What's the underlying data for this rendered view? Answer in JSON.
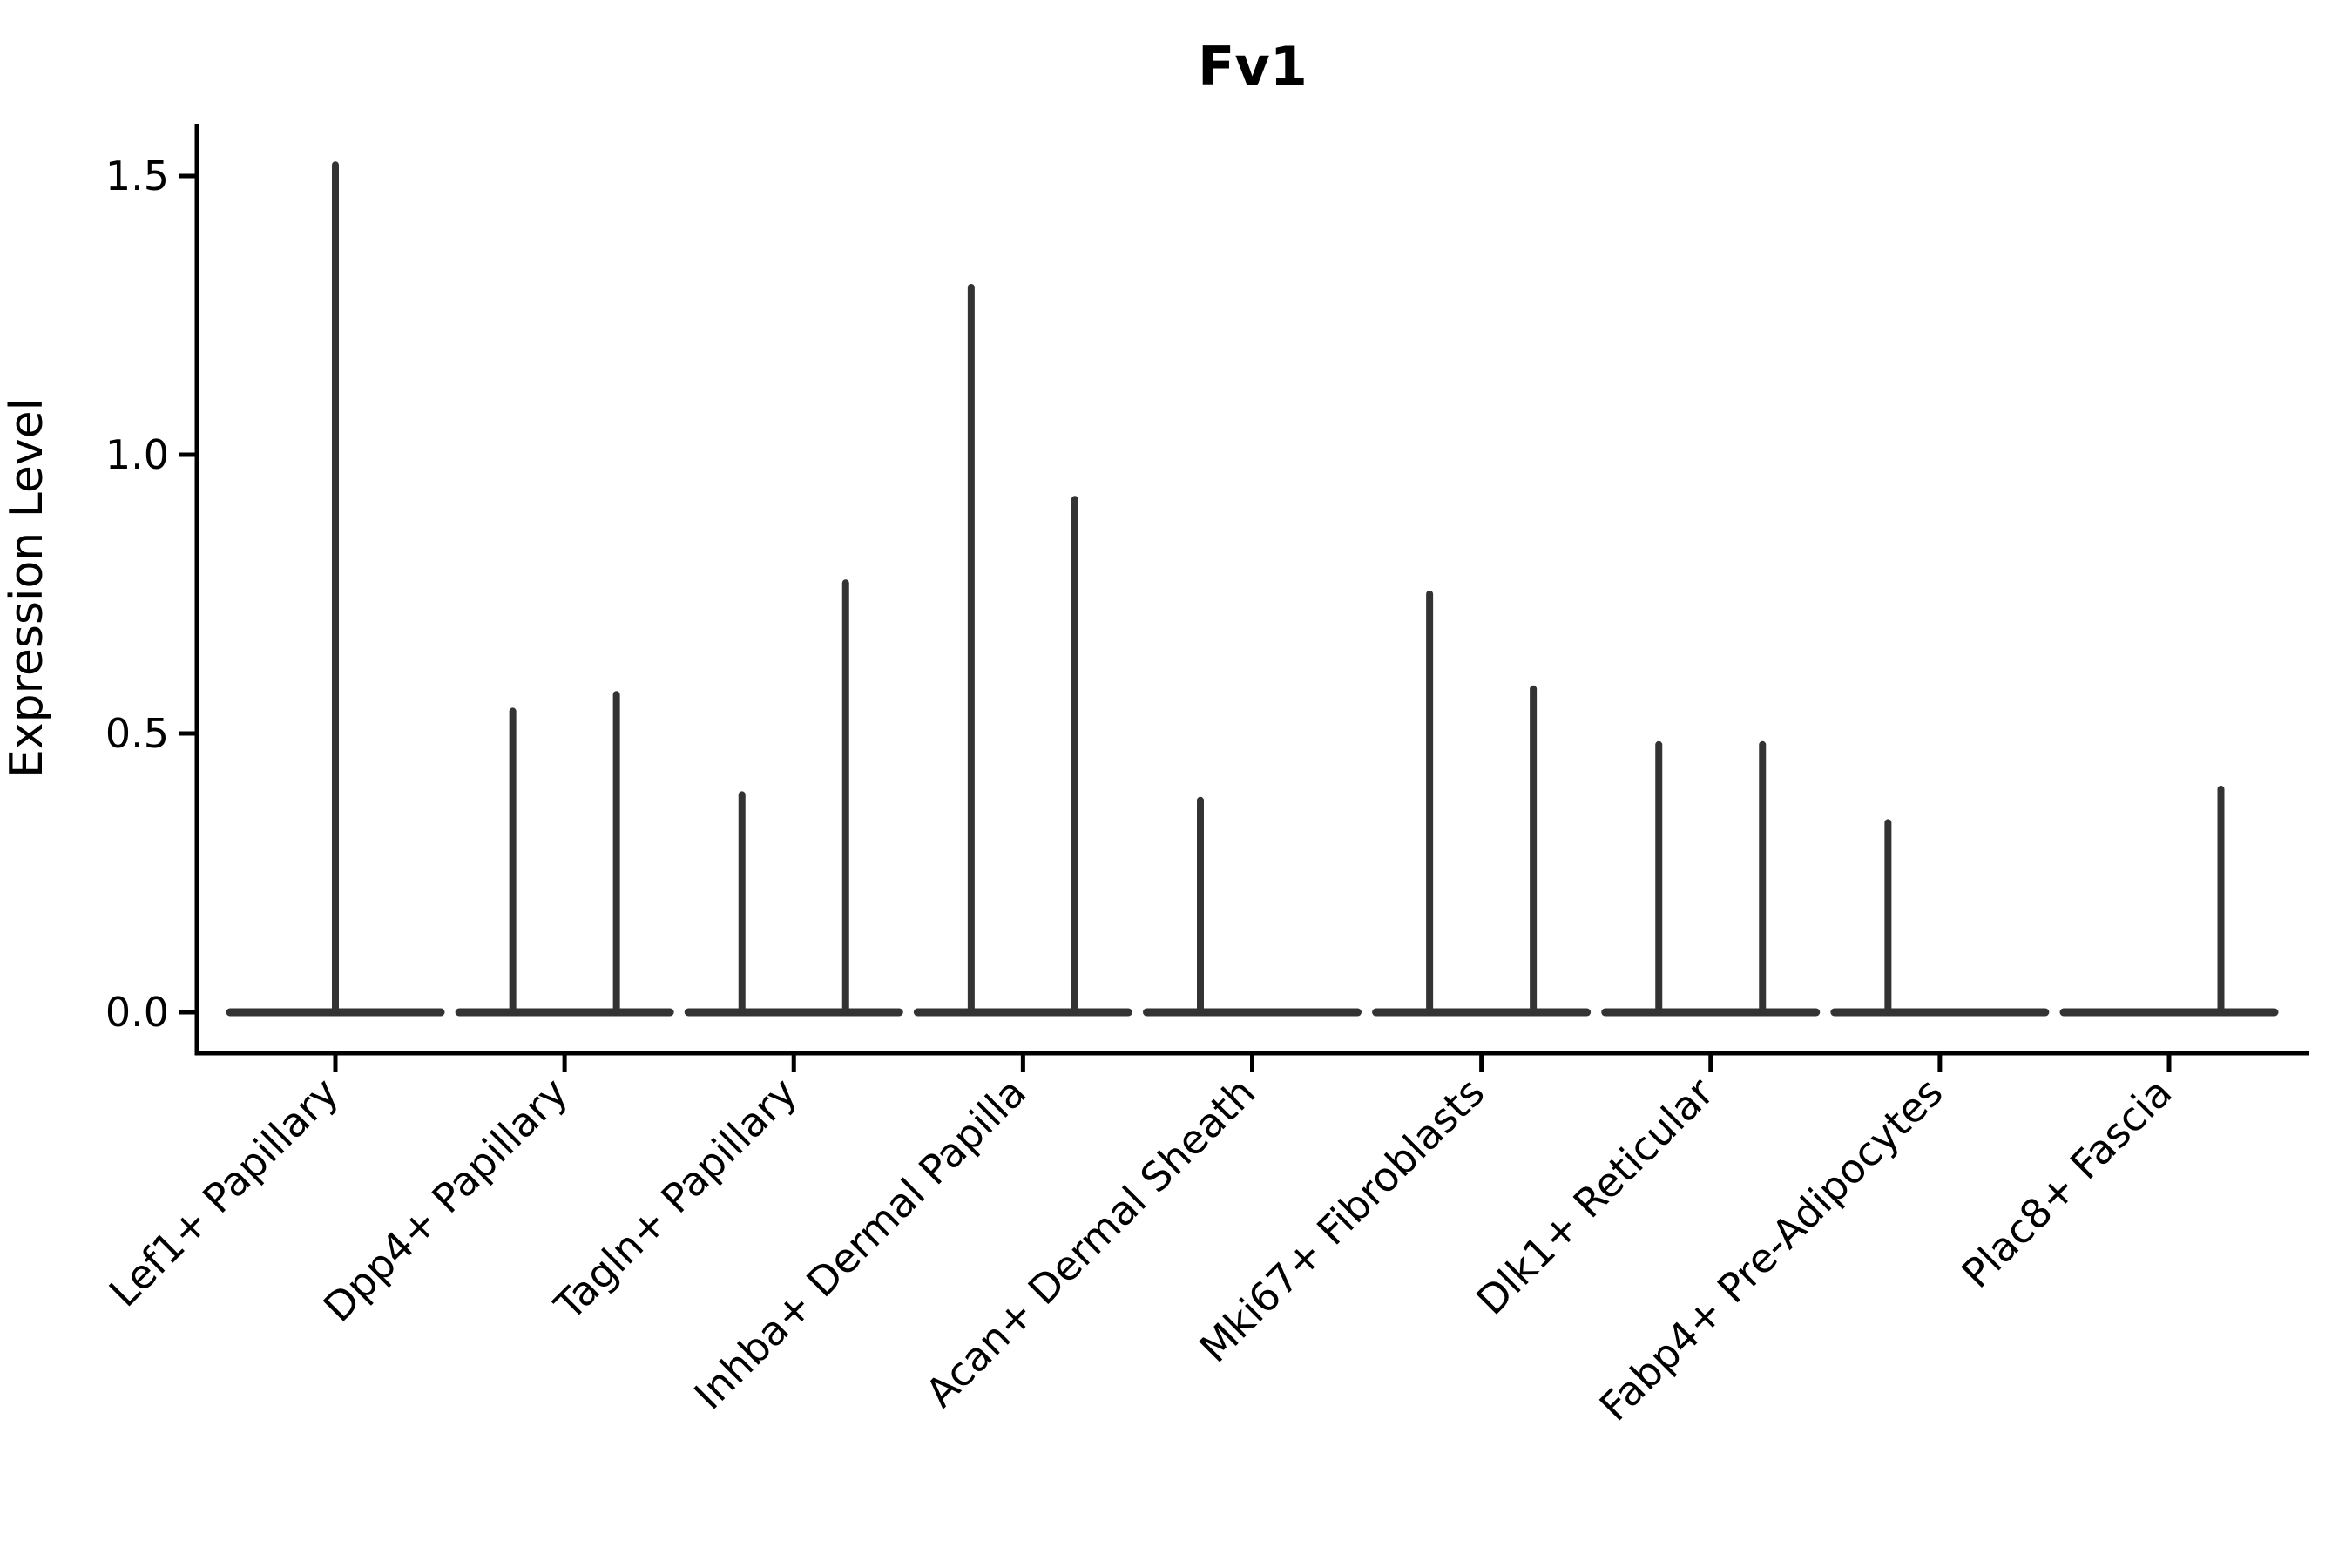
{
  "chart_data": {
    "type": "violin",
    "title": "Fv1",
    "xlabel": "",
    "ylabel": "Expression Level",
    "legend": "none",
    "grid": false,
    "background_color": "#ffffff",
    "axis_color": "#000000",
    "violin_color": "#333333",
    "ylim": [
      -0.07,
      1.59
    ],
    "y_ticks": [
      0.0,
      0.5,
      1.0,
      1.5
    ],
    "y_tick_labels": [
      "0.0",
      "0.5",
      "1.0",
      "1.5"
    ],
    "categories": [
      "Lef1+ Papillary",
      "Dpp4+ Papillary",
      "Tagln+ Papillary",
      "Inhba+ Dermal Papilla",
      "Acan+ Dermal Sheath",
      "Mki67+ Fibroblasts",
      "Dlk1+ Reticular",
      "Fabp4+ Pre-Adipocytes",
      "Plac8+ Fascia"
    ],
    "violins": [
      {
        "category": "Lef1+ Papillary",
        "baseline_value": 0.0,
        "spikes": [
          {
            "position": "center",
            "value": 1.52
          }
        ]
      },
      {
        "category": "Dpp4+ Papillary",
        "baseline_value": 0.0,
        "spikes": [
          {
            "position": "left",
            "value": 0.54
          },
          {
            "position": "right",
            "value": 0.57
          }
        ]
      },
      {
        "category": "Tagln+ Papillary",
        "baseline_value": 0.0,
        "spikes": [
          {
            "position": "left",
            "value": 0.39
          },
          {
            "position": "right",
            "value": 0.77
          }
        ]
      },
      {
        "category": "Inhba+ Dermal Papilla",
        "baseline_value": 0.0,
        "spikes": [
          {
            "position": "left",
            "value": 1.3
          },
          {
            "position": "right",
            "value": 0.92
          }
        ]
      },
      {
        "category": "Acan+ Dermal Sheath",
        "baseline_value": 0.0,
        "spikes": [
          {
            "position": "left",
            "value": 0.38
          }
        ]
      },
      {
        "category": "Mki67+ Fibroblasts",
        "baseline_value": 0.0,
        "spikes": [
          {
            "position": "left",
            "value": 0.75
          },
          {
            "position": "right",
            "value": 0.58
          }
        ]
      },
      {
        "category": "Dlk1+ Reticular",
        "baseline_value": 0.0,
        "spikes": [
          {
            "position": "left",
            "value": 0.48
          },
          {
            "position": "right",
            "value": 0.48
          }
        ]
      },
      {
        "category": "Fabp4+ Pre-Adipocytes",
        "baseline_value": 0.0,
        "spikes": [
          {
            "position": "left",
            "value": 0.34
          }
        ]
      },
      {
        "category": "Plac8+ Fascia",
        "baseline_value": 0.0,
        "spikes": [
          {
            "position": "right",
            "value": 0.4
          }
        ]
      }
    ]
  }
}
